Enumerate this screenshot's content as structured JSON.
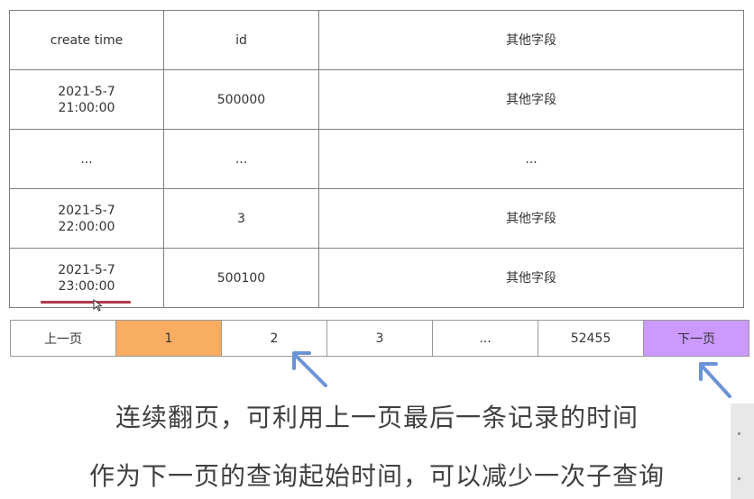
{
  "table": {
    "headers": [
      "create time",
      "id",
      "其他字段"
    ],
    "rows": [
      {
        "time_line1": "2021-5-7",
        "time_line2": "21:00:00",
        "id": "500000",
        "other": "其他字段"
      },
      {
        "time_line1": "...",
        "time_line2": "",
        "id": "...",
        "other": "..."
      },
      {
        "time_line1": "2021-5-7",
        "time_line2": "22:00:00",
        "id": "3",
        "other": "其他字段"
      },
      {
        "time_line1": "2021-5-7",
        "time_line2": "23:00:00",
        "id": "500100",
        "other": "其他字段"
      }
    ]
  },
  "pager": {
    "prev": "上一页",
    "pages": [
      "1",
      "2",
      "3",
      "...",
      "52455"
    ],
    "active_page": "1",
    "next": "下一页"
  },
  "captions": {
    "line1": "连续翻页，可利用上一页最后一条记录的时间",
    "line2": "作为下一页的查询起始时间，可以减少一次子查询"
  },
  "colors": {
    "active_page_bg": "#f8ad62",
    "next_button_bg": "#cc99ff",
    "underline": "#b03a4e",
    "arrow": "#6b93d6"
  }
}
